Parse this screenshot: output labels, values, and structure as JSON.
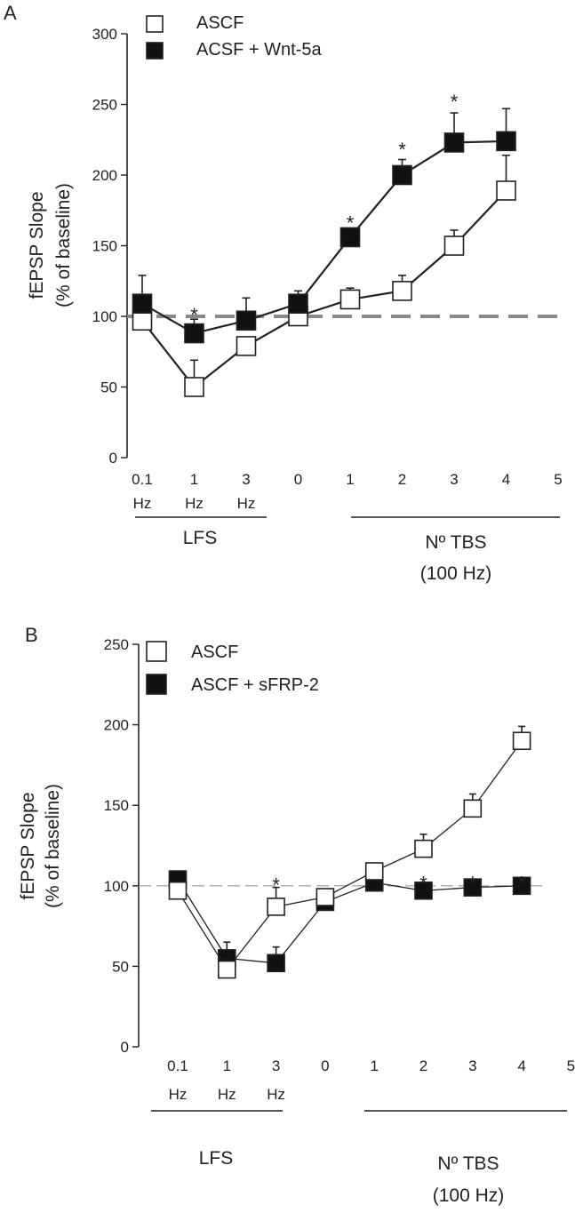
{
  "chart_data": [
    {
      "panel": "A",
      "type": "line",
      "ylabel_line1": "fEPSP Slope",
      "ylabel_line2": "(% of baseline)",
      "ylim": [
        0,
        300
      ],
      "yticks": [
        "0",
        "50",
        "100",
        "150",
        "200",
        "250",
        "300"
      ],
      "xticks": [
        {
          "top": "0.1",
          "bottom": "Hz"
        },
        {
          "top": "1",
          "bottom": "Hz"
        },
        {
          "top": "3",
          "bottom": "Hz"
        },
        {
          "top": "0",
          "bottom": ""
        },
        {
          "top": "1",
          "bottom": ""
        },
        {
          "top": "2",
          "bottom": ""
        },
        {
          "top": "3",
          "bottom": ""
        },
        {
          "top": "4",
          "bottom": ""
        },
        {
          "top": "5",
          "bottom": ""
        }
      ],
      "baseline": 100,
      "series": [
        {
          "name": "ASCF",
          "fill": "#ffffff",
          "errors_up": true,
          "x": [
            0,
            1,
            2,
            3,
            4,
            5,
            6,
            7
          ],
          "values": [
            97,
            50,
            79,
            100,
            112,
            118,
            150,
            189
          ],
          "errors": [
            0,
            19,
            0,
            0,
            8,
            11,
            11,
            25
          ]
        },
        {
          "name": "ACSF + Wnt-5a",
          "fill": "#111111",
          "errors_up": true,
          "x": [
            0,
            1,
            2,
            3,
            4,
            5,
            6,
            7
          ],
          "values": [
            109,
            88,
            97,
            109,
            156,
            200,
            223,
            224
          ],
          "errors": [
            20,
            10,
            16,
            9,
            4,
            11,
            21,
            23
          ]
        }
      ],
      "significance": [
        {
          "x": 1,
          "value": 105
        },
        {
          "x": 4,
          "value": 170
        },
        {
          "x": 5,
          "value": 222
        },
        {
          "x": 6,
          "value": 256
        }
      ],
      "group_labels": [
        {
          "lines": [
            "LFS"
          ],
          "x_from": 0,
          "x_to": 2
        },
        {
          "lines": [
            "Nº TBS",
            "(100 Hz)"
          ],
          "x_from": 4,
          "x_to": 8
        }
      ]
    },
    {
      "panel": "B",
      "type": "line",
      "ylabel_line1": "fEPSP Slope",
      "ylabel_line2": "(% of baseline)",
      "ylim": [
        0,
        250
      ],
      "yticks": [
        "0",
        "50",
        "100",
        "150",
        "200",
        "250"
      ],
      "xticks": [
        {
          "top": "0.1",
          "bottom": "Hz"
        },
        {
          "top": "1",
          "bottom": "Hz"
        },
        {
          "top": "3",
          "bottom": "Hz"
        },
        {
          "top": "0",
          "bottom": ""
        },
        {
          "top": "1",
          "bottom": ""
        },
        {
          "top": "2",
          "bottom": ""
        },
        {
          "top": "3",
          "bottom": ""
        },
        {
          "top": "4",
          "bottom": ""
        },
        {
          "top": "5",
          "bottom": ""
        }
      ],
      "baseline": 100,
      "series": [
        {
          "name": "ASCF + sFRP-2",
          "fill": "#111111",
          "errors_up": true,
          "x": [
            0,
            1,
            2,
            3,
            4,
            5,
            6,
            7
          ],
          "values": [
            104,
            55,
            52,
            90,
            102,
            97,
            99,
            100
          ],
          "errors": [
            0,
            10,
            10,
            0,
            0,
            0,
            0,
            0
          ]
        },
        {
          "name": "ASCF",
          "fill": "#ffffff",
          "errors_up": true,
          "x": [
            0,
            1,
            2,
            3,
            4,
            5,
            6,
            7
          ],
          "values": [
            97,
            48,
            87,
            93,
            109,
            123,
            148,
            190
          ],
          "errors": [
            0,
            6,
            12,
            0,
            4,
            9,
            9,
            9
          ]
        }
      ],
      "legend_order": [
        1,
        0
      ],
      "significance": [
        {
          "x": 2,
          "value": 104
        },
        {
          "x": 5,
          "value": 105
        },
        {
          "x": 6,
          "value": 105
        },
        {
          "x": 7,
          "value": 105
        }
      ],
      "group_labels": [
        {
          "lines": [
            "LFS"
          ],
          "x_from": 0,
          "x_to": 2
        },
        {
          "lines": [
            "Nº TBS",
            "(100 Hz)"
          ],
          "x_from": 4,
          "x_to": 8
        }
      ]
    }
  ],
  "panels": {
    "a_label": "A",
    "b_label": "B",
    "star": "*"
  }
}
